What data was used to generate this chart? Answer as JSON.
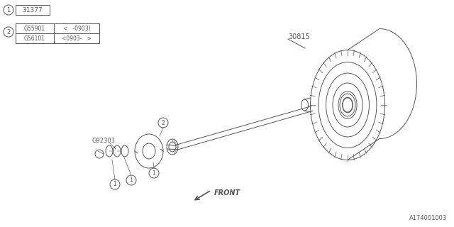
{
  "bg_color": "#ffffff",
  "line_color": "#555555",
  "part_label_1": "31377",
  "part_label_2a": "G55901",
  "part_label_2b": "G56101",
  "part_code_2a": "<   -0903)",
  "part_code_2b": "<0903-   >",
  "part_label_3": "30815",
  "part_label_4": "G92303",
  "front_label": "FRONT",
  "doc_number": "A174001003"
}
